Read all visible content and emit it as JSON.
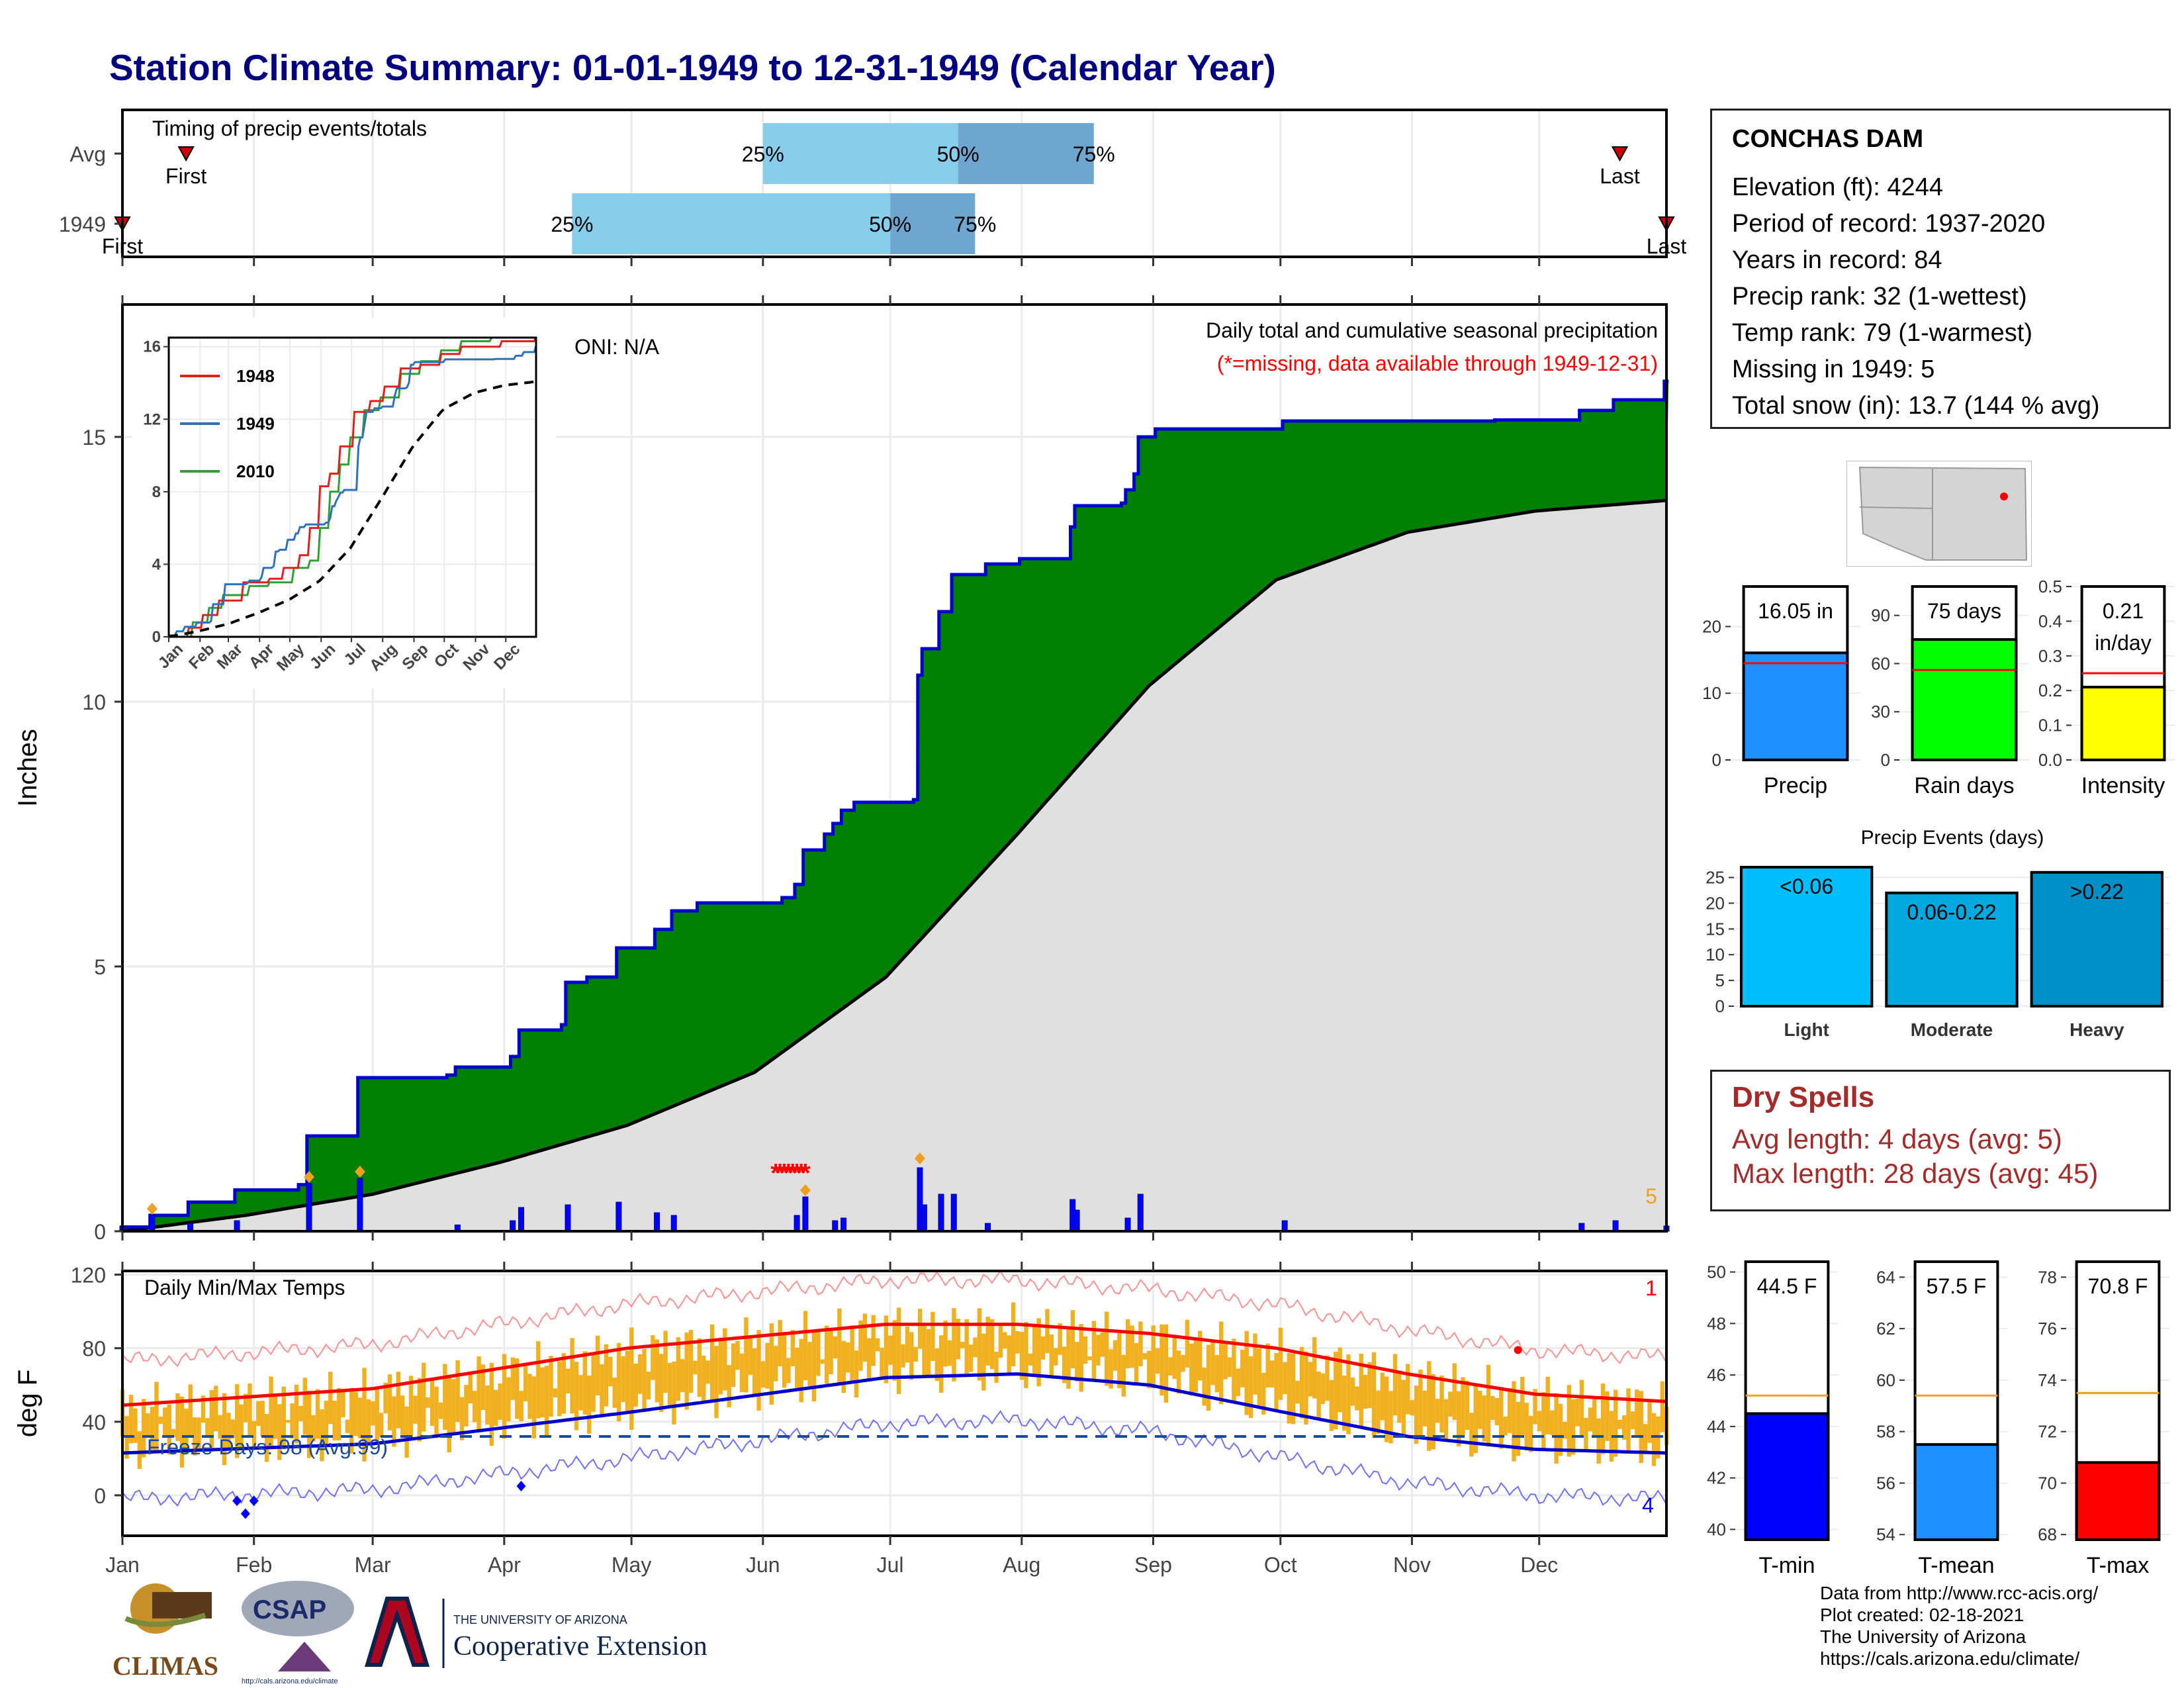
{
  "title": "Station Climate Summary: 01-01-1949 to 12-31-1949 (Calendar Year)",
  "station": {
    "name": "CONCHAS DAM",
    "lines": [
      "Elevation (ft): 4244",
      "Period of record: 1937-2020",
      "Years in record: 84",
      "Precip rank: 32 (1-wettest)",
      "Temp rank: 79 (1-warmest)",
      "Missing in 1949: 5",
      "Total snow (in): 13.7 (144 % avg)"
    ]
  },
  "dry_spells": {
    "title": "Dry Spells",
    "avg_length": "Avg length: 4 days (avg: 5)",
    "max_length": "Max length: 28 days (avg: 45)"
  },
  "credits": [
    "Data from http://www.rcc-acis.org/",
    "Plot created: 02-18-2021",
    "The University of Arizona",
    "https://cals.arizona.edu/climate/"
  ],
  "logos": {
    "climas": "CLIMAS",
    "csap": "CSAP",
    "csap_url": "http://cals.arizona.edu/climate",
    "ua_small": "THE UNIVERSITY OF ARIZONA",
    "ua_big": "Cooperative Extension"
  },
  "colors": {
    "title": "#000080",
    "green": "#008000",
    "blue_line": "#0000cd",
    "bar_light": "#87ceeb",
    "bar_dark": "#6ea6d0",
    "orange": "#f0ad20",
    "red": "#ff0000",
    "dry": "#a52a2a"
  },
  "chart_data": [
    {
      "id": "timing",
      "type": "bar",
      "title": "Timing of precip events/totals",
      "categories": [
        "Avg",
        "1949"
      ],
      "rows": [
        {
          "label": "Avg",
          "first": "Jan 16",
          "p25": "Jun 1",
          "p50": "Jul 17",
          "p75": "Aug 18",
          "last": "Dec 20"
        },
        {
          "label": "1949",
          "first": "Jan 1",
          "p25": "Apr 17",
          "p50": "Jul 1",
          "p75": "Jul 21",
          "last": "Dec 31"
        }
      ],
      "marker_labels": [
        "First",
        "Last"
      ],
      "pct_labels": [
        "25%",
        "50%",
        "75%"
      ]
    },
    {
      "id": "precip",
      "type": "area",
      "title": "Daily total and cumulative seasonal precipitation",
      "subtitle": "(*=missing, data available through 1949-12-31)",
      "oni": "ONI: N/A",
      "ylabel": "Inches",
      "ylim": [
        0,
        17.5
      ],
      "yticks": [
        0,
        5,
        10,
        15
      ],
      "xlabels": [
        "Jan",
        "Feb",
        "Mar",
        "Apr",
        "May",
        "Jun",
        "Jul",
        "Aug",
        "Sep",
        "Oct",
        "Nov",
        "Dec"
      ],
      "missing_count": "5",
      "cum_1949_steps": [
        [
          1,
          0.08
        ],
        [
          8,
          0.3
        ],
        [
          17,
          0.55
        ],
        [
          28,
          0.78
        ],
        [
          43,
          0.88
        ],
        [
          45,
          1.8
        ],
        [
          57,
          2.9
        ],
        [
          78,
          2.95
        ],
        [
          80,
          3.1
        ],
        [
          93,
          3.3
        ],
        [
          95,
          3.8
        ],
        [
          105,
          3.9
        ],
        [
          106,
          4.7
        ],
        [
          111,
          4.8
        ],
        [
          118,
          5.35
        ],
        [
          127,
          5.7
        ],
        [
          131,
          6.05
        ],
        [
          137,
          6.2
        ],
        [
          157,
          6.3
        ],
        [
          160,
          6.55
        ],
        [
          162,
          7.2
        ],
        [
          167,
          7.5
        ],
        [
          169,
          7.7
        ],
        [
          171,
          7.95
        ],
        [
          174,
          8.1
        ],
        [
          188,
          8.15
        ],
        [
          189,
          10.5
        ],
        [
          190,
          11.0
        ],
        [
          194,
          11.7
        ],
        [
          197,
          12.4
        ],
        [
          205,
          12.6
        ],
        [
          213,
          12.7
        ],
        [
          225,
          13.3
        ],
        [
          226,
          13.7
        ],
        [
          237,
          13.75
        ],
        [
          238,
          14.0
        ],
        [
          240,
          14.3
        ],
        [
          241,
          15.0
        ],
        [
          245,
          15.15
        ],
        [
          275,
          15.3
        ],
        [
          325,
          15.32
        ],
        [
          345,
          15.5
        ],
        [
          353,
          15.7
        ],
        [
          365,
          16.05
        ]
      ],
      "avg_cum": [
        [
          1,
          0.0
        ],
        [
          30,
          0.3
        ],
        [
          60,
          0.7
        ],
        [
          90,
          1.3
        ],
        [
          120,
          2.0
        ],
        [
          150,
          3.0
        ],
        [
          181,
          4.8
        ],
        [
          212,
          7.5
        ],
        [
          243,
          10.3
        ],
        [
          273,
          12.3
        ],
        [
          304,
          13.2
        ],
        [
          334,
          13.6
        ],
        [
          365,
          13.8
        ]
      ],
      "daily": [
        [
          1,
          0.1
        ],
        [
          8,
          0.3
        ],
        [
          17,
          0.15
        ],
        [
          28,
          0.2
        ],
        [
          45,
          0.9
        ],
        [
          57,
          1.0
        ],
        [
          80,
          0.12
        ],
        [
          93,
          0.2
        ],
        [
          95,
          0.45
        ],
        [
          106,
          0.5
        ],
        [
          118,
          0.55
        ],
        [
          127,
          0.35
        ],
        [
          131,
          0.3
        ],
        [
          160,
          0.3
        ],
        [
          162,
          0.65
        ],
        [
          169,
          0.2
        ],
        [
          171,
          0.25
        ],
        [
          189,
          1.2
        ],
        [
          190,
          0.5
        ],
        [
          194,
          0.7
        ],
        [
          197,
          0.7
        ],
        [
          205,
          0.15
        ],
        [
          225,
          0.6
        ],
        [
          226,
          0.4
        ],
        [
          238,
          0.25
        ],
        [
          241,
          0.7
        ],
        [
          275,
          0.2
        ],
        [
          345,
          0.15
        ],
        [
          353,
          0.2
        ],
        [
          365,
          0.1
        ]
      ],
      "missing_days": [
        155,
        156,
        157,
        158,
        159,
        160,
        161,
        162
      ]
    },
    {
      "id": "inset",
      "type": "line",
      "series": [
        {
          "name": "1948",
          "color": "#e0201c"
        },
        {
          "name": "1949",
          "color": "#3070c0"
        },
        {
          "name": "2010",
          "color": "#30a030"
        }
      ],
      "xlabels": [
        "Jan",
        "Feb",
        "Mar",
        "Apr",
        "May",
        "Jun",
        "Jul",
        "Aug",
        "Sep",
        "Oct",
        "Nov",
        "Dec"
      ],
      "yticks": [
        0,
        4,
        8,
        12,
        16
      ],
      "ylim": [
        0,
        16.5
      ]
    },
    {
      "id": "temps",
      "type": "line",
      "title": "Daily Min/Max Temps",
      "ylabel": "deg F",
      "ylim": [
        -22,
        122
      ],
      "yticks": [
        0,
        40,
        80,
        120
      ],
      "xlabels": [
        "Jan",
        "Feb",
        "Mar",
        "Apr",
        "May",
        "Jun",
        "Jul",
        "Aug",
        "Sep",
        "Oct",
        "Nov",
        "Dec"
      ],
      "freeze_label": "Freeze Days: 98 (Avg:99)",
      "freeze_line": 32,
      "count_top": "1",
      "count_bottom": "4",
      "avg_max": [
        [
          1,
          49
        ],
        [
          60,
          58
        ],
        [
          120,
          80
        ],
        [
          181,
          93
        ],
        [
          212,
          93
        ],
        [
          243,
          88
        ],
        [
          273,
          80
        ],
        [
          304,
          66
        ],
        [
          334,
          55
        ],
        [
          365,
          51
        ]
      ],
      "avg_min": [
        [
          1,
          23
        ],
        [
          60,
          28
        ],
        [
          120,
          45
        ],
        [
          181,
          64
        ],
        [
          212,
          66
        ],
        [
          243,
          60
        ],
        [
          273,
          46
        ],
        [
          304,
          32
        ],
        [
          334,
          25
        ],
        [
          365,
          23
        ]
      ]
    },
    {
      "id": "summary_bars",
      "type": "bar",
      "panels": [
        {
          "label": "Precip",
          "value": 16.05,
          "text": "16.05 in",
          "avg": 14.5,
          "ylim": [
            0,
            26
          ],
          "yticks": [
            0,
            10,
            20
          ],
          "color": "#1e90ff"
        },
        {
          "label": "Rain days",
          "value": 75,
          "text": "75 days",
          "avg": 56,
          "ylim": [
            0,
            108
          ],
          "yticks": [
            0,
            30,
            60,
            90
          ],
          "color": "#00ff00"
        },
        {
          "label": "Intensity",
          "value": 0.21,
          "text": "0.21",
          "text2": "in/day",
          "avg": 0.25,
          "ylim": [
            0,
            0.5
          ],
          "yticks": [
            0.0,
            0.1,
            0.2,
            0.3,
            0.4,
            0.5
          ],
          "color": "#ffff00"
        }
      ]
    },
    {
      "id": "events",
      "type": "bar",
      "title": "Precip Events (days)",
      "categories": [
        "Light",
        "Moderate",
        "Heavy"
      ],
      "labels": [
        "<0.06",
        "0.06-0.22",
        ">0.22"
      ],
      "values": [
        27,
        22,
        26
      ],
      "ylim": [
        0,
        27
      ],
      "yticks": [
        0,
        5,
        10,
        15,
        20,
        25
      ],
      "colors": [
        "#00bfff",
        "#00a8e0",
        "#0090c8"
      ]
    },
    {
      "id": "temp_bars",
      "type": "bar",
      "panels": [
        {
          "label": "T-min",
          "value": 44.5,
          "text": "44.5 F",
          "avg": 45.2,
          "ylim": [
            39.6,
            50.4
          ],
          "yticks": [
            40,
            42,
            44,
            46,
            48,
            50
          ],
          "color": "#0000ff"
        },
        {
          "label": "T-mean",
          "value": 57.5,
          "text": "57.5 F",
          "avg": 59.4,
          "ylim": [
            53.8,
            64.6
          ],
          "yticks": [
            54,
            56,
            58,
            60,
            62,
            64
          ],
          "color": "#1e90ff"
        },
        {
          "label": "T-max",
          "value": 70.8,
          "text": "70.8 F",
          "avg": 73.5,
          "ylim": [
            67.8,
            78.6
          ],
          "yticks": [
            68,
            70,
            72,
            74,
            76,
            78
          ],
          "color": "#ff0000"
        }
      ]
    }
  ]
}
